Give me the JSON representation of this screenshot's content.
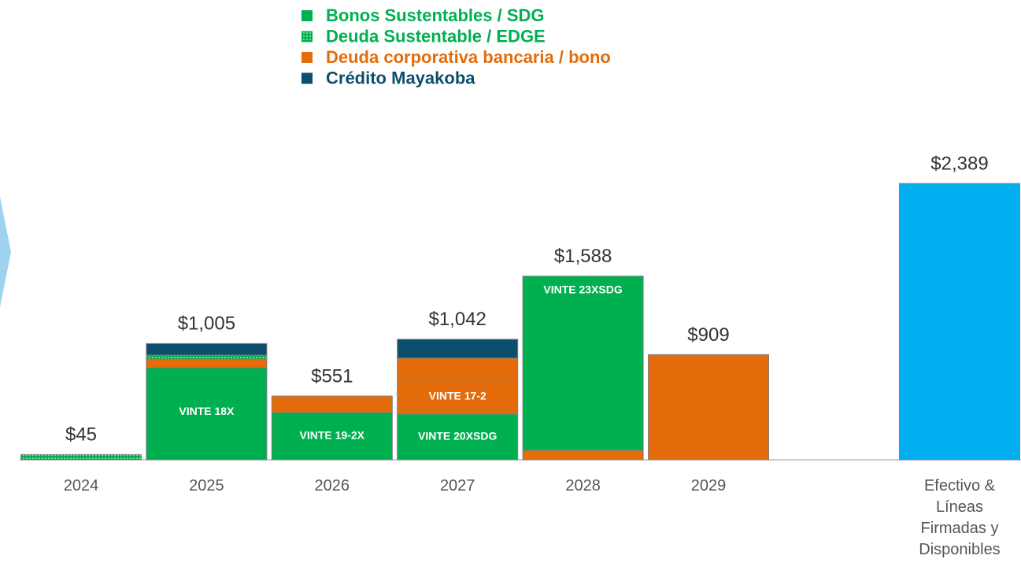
{
  "chart_data": {
    "type": "stacked_bar",
    "series": [
      {
        "name": "Bonos Sustentables / SDG",
        "color": "#00b050"
      },
      {
        "name": "Deuda Sustentable / EDGE",
        "color": "#00b050",
        "pattern": "dots"
      },
      {
        "name": "Deuda corporativa bancaria / bono",
        "color": "#e46c0a"
      },
      {
        "name": "Crédito Mayakoba",
        "color": "#0d4e6c"
      }
    ],
    "categories": [
      "2024",
      "2025",
      "2026",
      "2027",
      "2028",
      "2029",
      "Efectivo & Líneas Firmadas y Disponibles"
    ],
    "stacks": [
      [
        {
          "series": 1,
          "value": 45
        }
      ],
      [
        {
          "series": 0,
          "value": 796,
          "label": "VINTE 18X"
        },
        {
          "series": 2,
          "value": 75
        },
        {
          "series": 1,
          "value": 34
        },
        {
          "series": 3,
          "value": 100
        }
      ],
      [
        {
          "series": 0,
          "value": 408,
          "label": "VINTE 19-2X"
        },
        {
          "series": 2,
          "value": 143
        }
      ],
      [
        {
          "series": 0,
          "value": 395,
          "label": "VINTE 20XSDG"
        },
        {
          "series": 2,
          "value": 300,
          "label": "VINTE 17-2"
        },
        {
          "series": 2,
          "value": 184
        },
        {
          "series": 3,
          "value": 163
        }
      ],
      [
        {
          "series": 2,
          "value": 82
        },
        {
          "series": 0,
          "value": 1506,
          "label": "VINTE 23XSDG"
        }
      ],
      [
        {
          "series": 2,
          "value": 909
        }
      ],
      [
        {
          "color": "#00b0f0",
          "value": 2389
        }
      ]
    ],
    "totals": [
      45,
      1005,
      551,
      1042,
      1588,
      909,
      2389
    ],
    "value_labels": [
      "$45",
      "$1,005",
      "$551",
      "$1,042",
      "$1,588",
      "$909",
      "$2,389"
    ],
    "legend": "top"
  }
}
